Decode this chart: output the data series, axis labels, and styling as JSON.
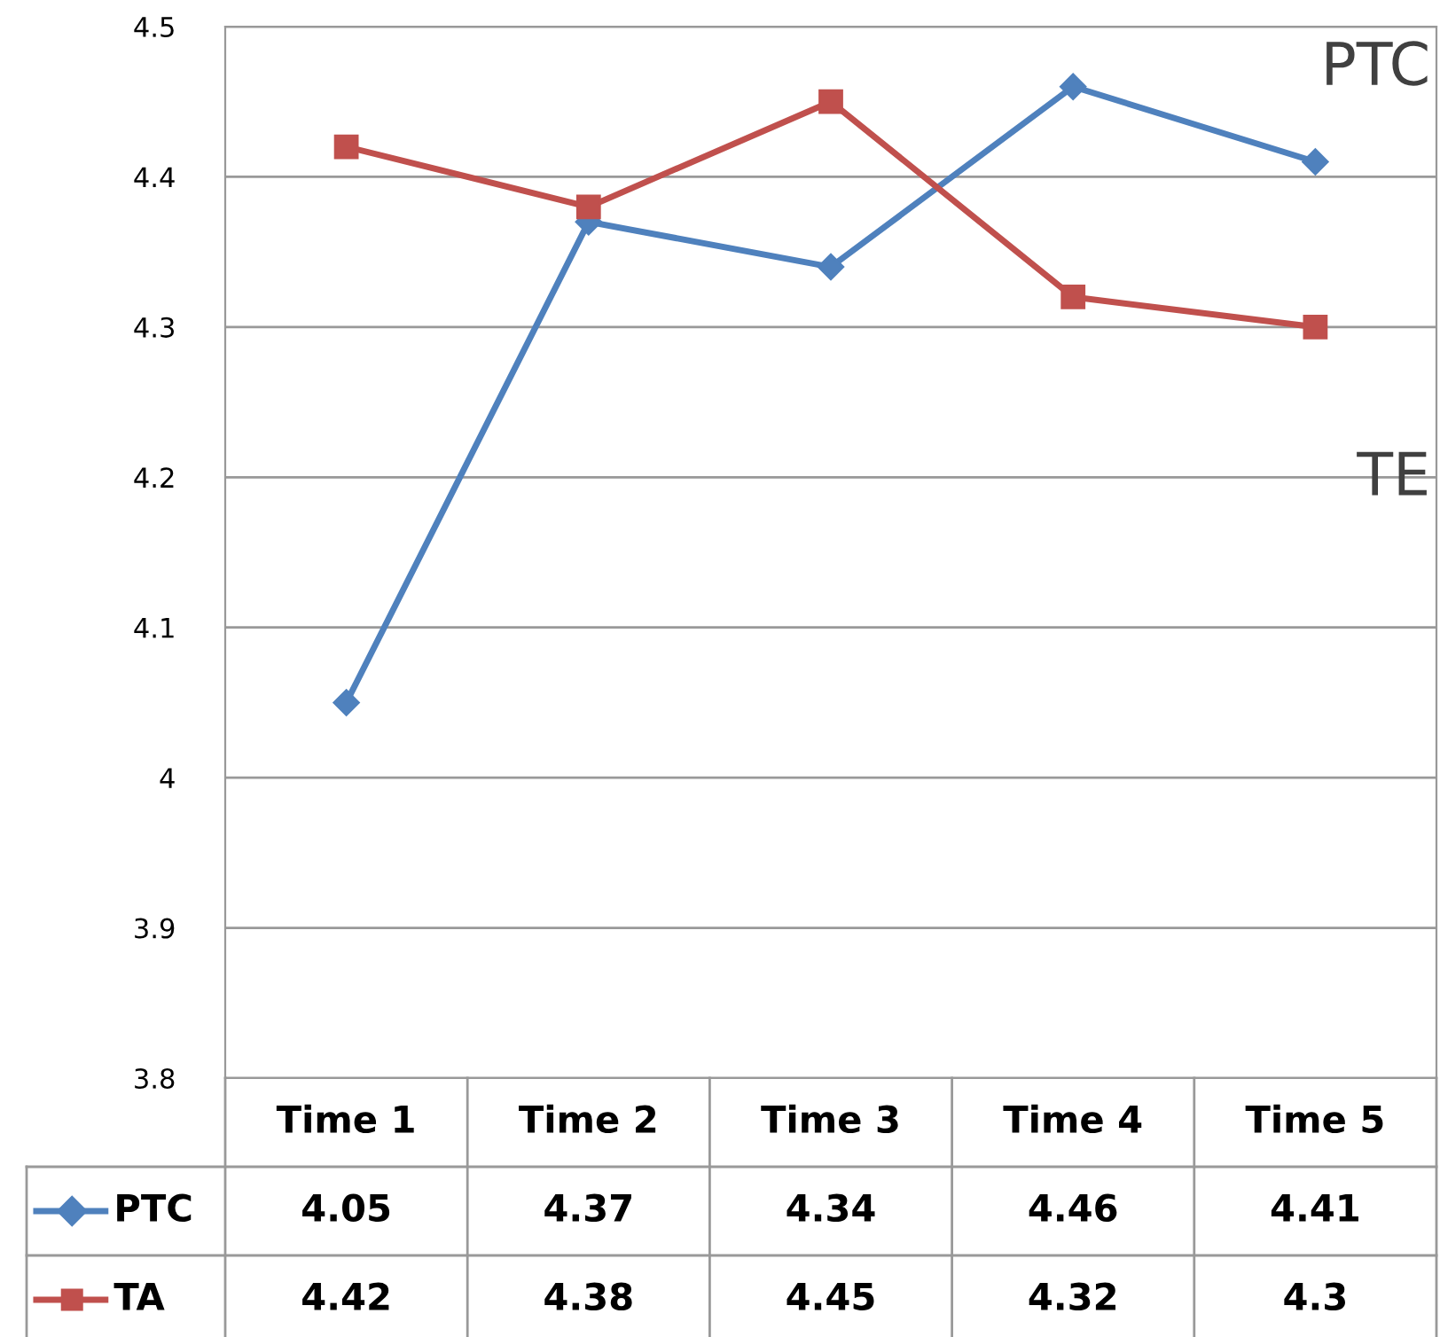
{
  "chart_data": {
    "type": "line",
    "categories": [
      "Time 1",
      "Time 2",
      "Time 3",
      "Time 4",
      "Time 5"
    ],
    "series": [
      {
        "name": "PTC",
        "color": "#4f81bd",
        "marker": "diamond",
        "values": [
          4.05,
          4.37,
          4.34,
          4.46,
          4.41
        ]
      },
      {
        "name": "TA",
        "color": "#c0504d",
        "marker": "square",
        "values": [
          4.42,
          4.38,
          4.45,
          4.32,
          4.3
        ]
      }
    ],
    "ylim": [
      3.8,
      4.5
    ],
    "yticks": [
      3.8,
      3.9,
      4,
      4.1,
      4.2,
      4.3,
      4.4,
      4.5
    ],
    "grid": "y",
    "data_labels": true,
    "legend": "bottom left",
    "annotations": [
      "PTC",
      "TE"
    ]
  }
}
